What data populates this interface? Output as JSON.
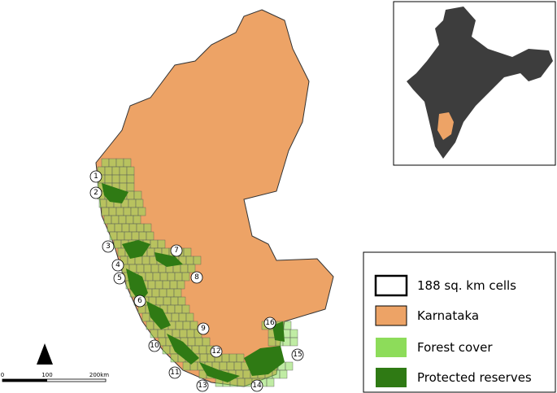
{
  "map": {
    "sites": [
      "1",
      "2",
      "3",
      "4",
      "5",
      "6",
      "7",
      "8",
      "9",
      "10",
      "11",
      "12",
      "13",
      "14",
      "15",
      "16"
    ],
    "legend": [
      "188 sq. km cells",
      "Karnataka",
      "Forest cover",
      "Protected reserves"
    ],
    "scale_bar": [
      "0",
      "100",
      "200km"
    ]
  }
}
